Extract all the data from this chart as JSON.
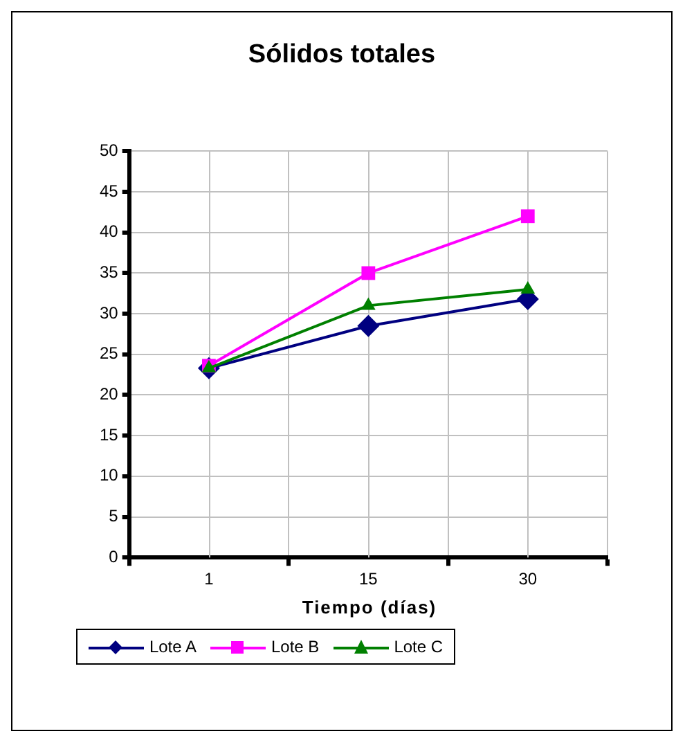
{
  "chart_data": {
    "type": "line",
    "title": "Sólidos totales",
    "xlabel": "Tiempo (días)",
    "categories": [
      "1",
      "15",
      "30"
    ],
    "series": [
      {
        "name": "Lote A",
        "color": "#000080",
        "marker": "diamond",
        "values": [
          23.3,
          28.5,
          31.8
        ]
      },
      {
        "name": "Lote B",
        "color": "#ff00ff",
        "marker": "square",
        "values": [
          23.6,
          35,
          42
        ]
      },
      {
        "name": "Lote C",
        "color": "#008000",
        "marker": "triangle",
        "values": [
          23.3,
          31,
          33
        ]
      }
    ],
    "ylim": [
      0,
      50
    ],
    "yticks": [
      0,
      5,
      10,
      15,
      20,
      25,
      30,
      35,
      40,
      45,
      50
    ],
    "grid": true,
    "legend": "bottom",
    "line_style": "solid"
  }
}
